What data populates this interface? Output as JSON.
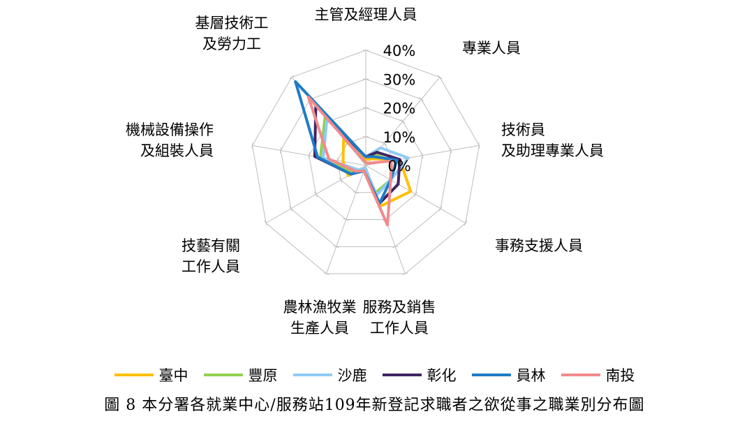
{
  "chart_data": {
    "type": "radar",
    "categories": [
      {
        "lines": [
          "主管及經理人員"
        ]
      },
      {
        "lines": [
          "專業人員"
        ]
      },
      {
        "lines": [
          "技術員",
          "及助理專業人員"
        ]
      },
      {
        "lines": [
          "事務支援人員"
        ]
      },
      {
        "lines": [
          "服務及銷售",
          "工作人員"
        ]
      },
      {
        "lines": [
          "農林漁牧業",
          "生產人員"
        ]
      },
      {
        "lines": [
          "技藝有關",
          "工作人員"
        ]
      },
      {
        "lines": [
          "機械設備操作",
          "及組裝人員"
        ]
      },
      {
        "lines": [
          "基層技術工",
          "及勞力工"
        ]
      }
    ],
    "rmax": 40,
    "ticks": [
      "0%",
      "10%",
      "20%",
      "30%",
      "40%"
    ],
    "tick_values": [
      0,
      10,
      20,
      30,
      40
    ],
    "grid": true,
    "legend_position": "bottom",
    "series": [
      {
        "name": "臺中",
        "color": "#FFC000",
        "values": [
          2,
          3,
          12,
          18,
          15,
          1,
          7,
          8,
          12
        ]
      },
      {
        "name": "豐原",
        "color": "#92D050",
        "values": [
          3,
          5,
          9,
          10,
          10,
          1,
          5,
          16,
          22
        ]
      },
      {
        "name": "沙鹿",
        "color": "#8FCBF5",
        "values": [
          3,
          8,
          15,
          10,
          11,
          1,
          3,
          15,
          21
        ]
      },
      {
        "name": "彰化",
        "color": "#3F2461",
        "values": [
          3,
          6,
          12,
          13,
          14,
          2,
          6,
          18,
          27
        ]
      },
      {
        "name": "員林",
        "color": "#1F7BC6",
        "values": [
          3,
          4,
          11,
          10,
          14,
          2,
          6,
          17,
          38
        ]
      },
      {
        "name": "南投",
        "color": "#F28A8C",
        "values": [
          1,
          1,
          9,
          10,
          22,
          2,
          4,
          13,
          31
        ]
      }
    ]
  },
  "caption": "圖 8 本分署各就業中心/服務站109年新登記求職者之欲從事之職業別分布圖"
}
